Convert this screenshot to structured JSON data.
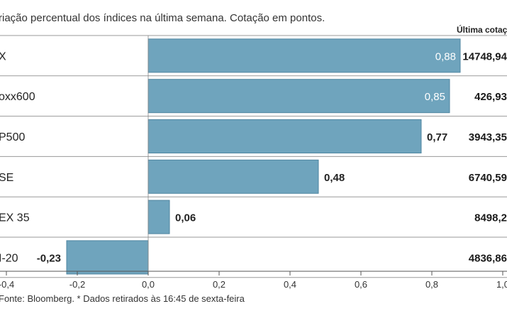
{
  "chart_data": {
    "type": "bar",
    "orientation": "horizontal",
    "subtitle": "riação percentual dos índices na última semana. Cotação em pontos.",
    "column_header": "Última cotaç",
    "categories": [
      "X",
      "oxx600",
      "P500",
      "SE",
      "EX 35",
      "I-20"
    ],
    "values": [
      0.88,
      0.85,
      0.77,
      0.48,
      0.06,
      -0.23
    ],
    "value_labels": [
      "0,88",
      "0,85",
      "0,77",
      "0,48",
      "0,06",
      "-0,23"
    ],
    "last_quotes": [
      "14748,94",
      "426,93",
      "3943,35",
      "6740,59",
      "8498,2",
      "4836,86"
    ],
    "xlim": [
      -0.4,
      1.0
    ],
    "xticks": [
      -0.4,
      -0.2,
      0.0,
      0.2,
      0.4,
      0.6,
      0.8,
      1.0
    ],
    "xtick_labels": [
      "-0,4",
      "-0,2",
      "0,0",
      "0,2",
      "0,4",
      "0,6",
      "0,8",
      "1,0"
    ],
    "grid": false,
    "source": "Fonte: Bloomberg.  * Dados retirados às 16:45 de sexta-feira",
    "colors": {
      "bar": "#6fa4bd",
      "bar_edge": "#4f86a1",
      "separator": "#9a9a9a",
      "axis": "#555555",
      "label_inside": "#ffffff",
      "label_outside": "#222222"
    }
  }
}
